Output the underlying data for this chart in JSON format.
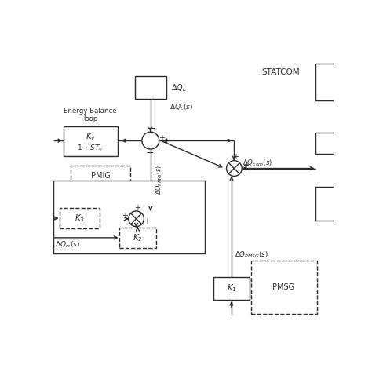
{
  "bg_color": "#ffffff",
  "lc": "#2a2a2a",
  "lw": 1.0,
  "fig_w": 4.74,
  "fig_h": 4.74,
  "dpi": 100,
  "xlim": [
    0,
    10
  ],
  "ylim": [
    0,
    10
  ]
}
